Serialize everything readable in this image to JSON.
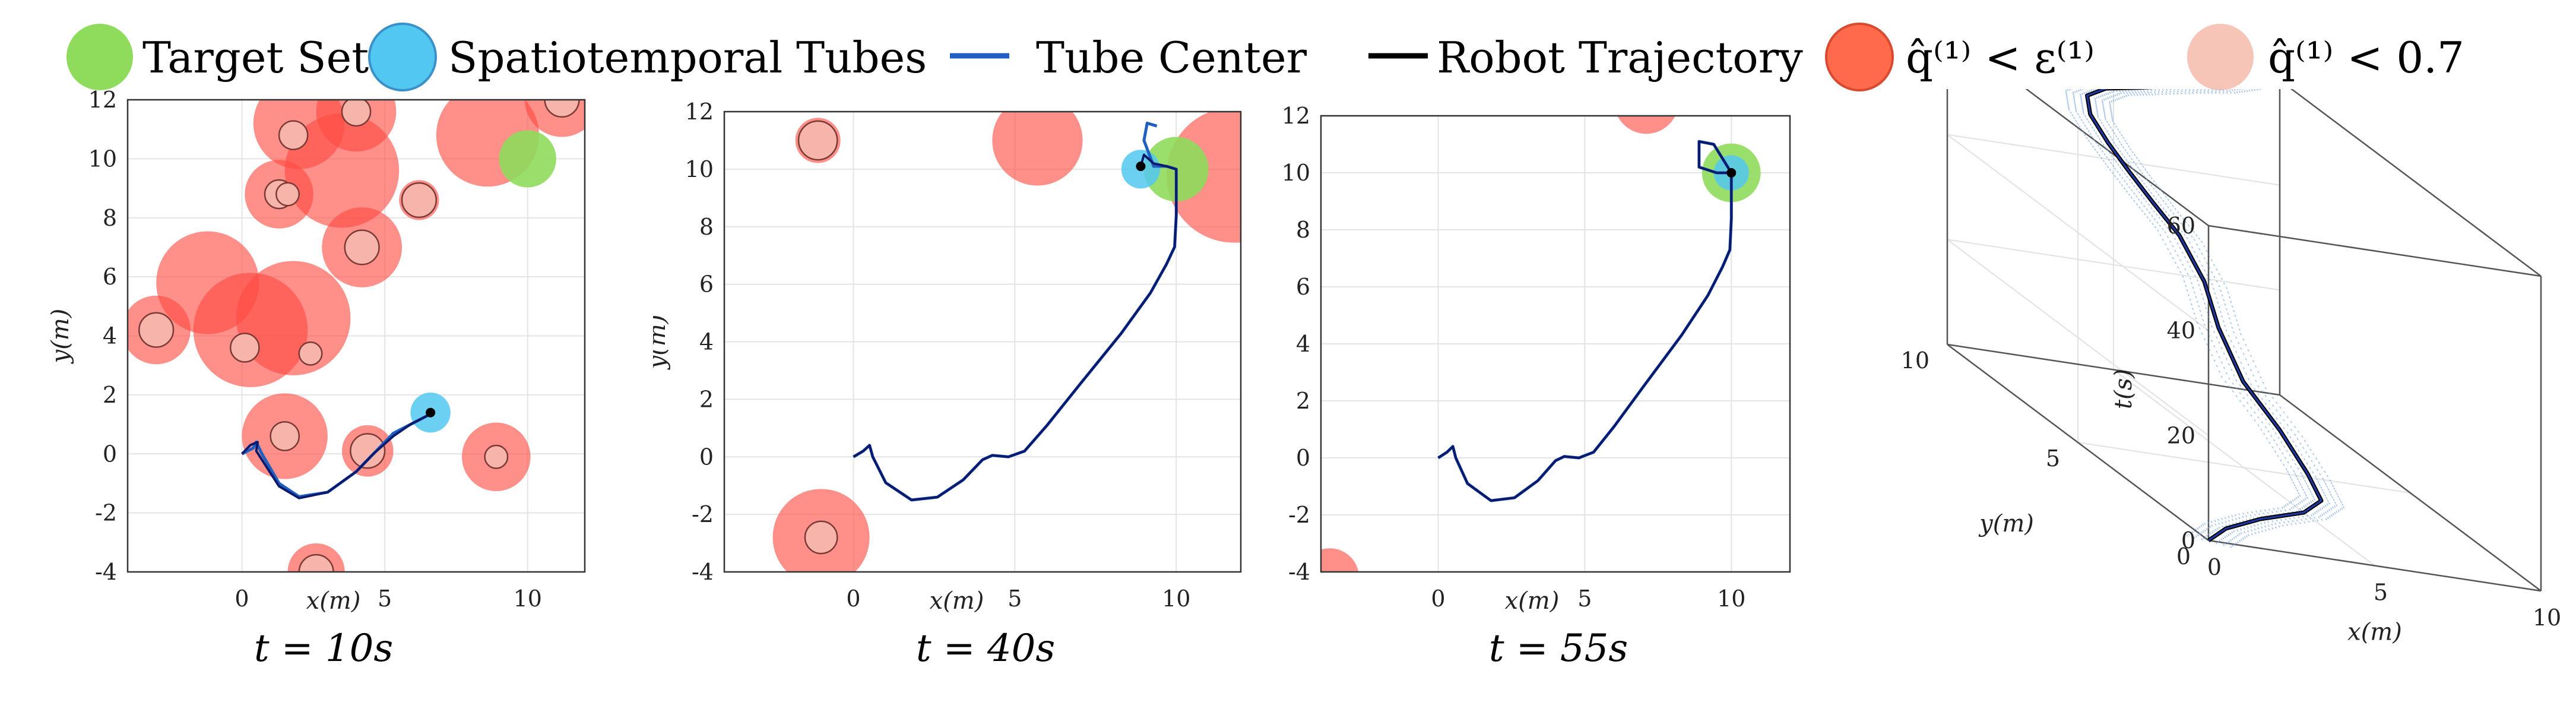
{
  "legend": {
    "target_set": "Target Set",
    "tubes": "Spatiotemporal Tubes",
    "tube_center": "Tube Center",
    "robot_trajectory": "Robot Trajectory",
    "q_eps": "q̂⁽¹⁾ < ε⁽¹⁾",
    "q_07": "q̂⁽¹⁾ < 0.7"
  },
  "colors": {
    "target": "#8fdc5c",
    "tube": "#52c8f0",
    "tube_center": "#1f5fbf",
    "trajectory": "#0a1a6e",
    "obstacle_eps": "#ff4a40",
    "obstacle_07": "#f7b4aa"
  },
  "chart_data": [
    {
      "type": "scatter",
      "title": "t = 10s",
      "xlabel": "x(m)",
      "ylabel": "y(m)",
      "xlim": [
        -4,
        12
      ],
      "ylim": [
        -4,
        12
      ],
      "xticks": [
        0,
        5,
        10
      ],
      "yticks": [
        -4,
        -2,
        0,
        2,
        4,
        6,
        8,
        10,
        12
      ],
      "grid": true,
      "target": {
        "x": 10,
        "y": 10,
        "r": 1.0
      },
      "tube": {
        "x": 6.6,
        "y": 1.4,
        "r": 0.7
      },
      "robot": {
        "x": 6.6,
        "y": 1.4
      },
      "obstacles": [
        {
          "x": 2.0,
          "y": 11.2,
          "r": 1.6,
          "inner": 0.0
        },
        {
          "x": 1.8,
          "y": 10.8,
          "r": 0.5,
          "inner": 0.5
        },
        {
          "x": 4.0,
          "y": 11.6,
          "r": 1.4,
          "inner": 0.5
        },
        {
          "x": 3.5,
          "y": 9.6,
          "r": 2.0,
          "inner": 0.0
        },
        {
          "x": 1.3,
          "y": 8.8,
          "r": 1.2,
          "inner": 0.5
        },
        {
          "x": 1.6,
          "y": 8.8,
          "r": 0.4,
          "inner": 0.4
        },
        {
          "x": 4.2,
          "y": 7.0,
          "r": 1.4,
          "inner": 0.6
        },
        {
          "x": 6.2,
          "y": 8.6,
          "r": 0.7,
          "inner": 0.6
        },
        {
          "x": 8.6,
          "y": 10.8,
          "r": 1.8,
          "inner": 0.0
        },
        {
          "x": 11.2,
          "y": 12.0,
          "r": 1.3,
          "inner": 0.6
        },
        {
          "x": -1.2,
          "y": 5.8,
          "r": 1.8,
          "inner": 0.0
        },
        {
          "x": 0.3,
          "y": 4.2,
          "r": 2.0,
          "inner": 0.0
        },
        {
          "x": 1.8,
          "y": 4.6,
          "r": 2.0,
          "inner": 0.0
        },
        {
          "x": 0.1,
          "y": 3.6,
          "r": 0.5,
          "inner": 0.5
        },
        {
          "x": 2.4,
          "y": 3.4,
          "r": 0.4,
          "inner": 0.4
        },
        {
          "x": -3.0,
          "y": 4.2,
          "r": 1.2,
          "inner": 0.6
        },
        {
          "x": 1.5,
          "y": 0.6,
          "r": 1.5,
          "inner": 0.5
        },
        {
          "x": 4.4,
          "y": 0.1,
          "r": 0.9,
          "inner": 0.6
        },
        {
          "x": 8.9,
          "y": -0.1,
          "r": 1.2,
          "inner": 0.4
        },
        {
          "x": 2.6,
          "y": -4.0,
          "r": 1.0,
          "inner": 0.6
        }
      ],
      "center_path": {
        "x": [
          0,
          0.4,
          0.5,
          0.7,
          1.3,
          2.0,
          3.0,
          4.0,
          4.6,
          5.3,
          5.9,
          6.5,
          6.7
        ],
        "y": [
          0.0,
          0.2,
          0.4,
          0.0,
          -1.0,
          -1.45,
          -1.3,
          -0.6,
          0.0,
          0.7,
          1.0,
          1.3,
          1.4
        ]
      },
      "trajectory": {
        "x": [
          0.0,
          0.3,
          0.55,
          0.5,
          0.7,
          1.3,
          2.0,
          3.0,
          4.0,
          4.6,
          5.3,
          5.9,
          6.5,
          6.6
        ],
        "y": [
          0.0,
          0.3,
          0.4,
          0.1,
          -0.2,
          -1.1,
          -1.5,
          -1.3,
          -0.6,
          0.0,
          0.6,
          1.0,
          1.3,
          1.4
        ]
      }
    },
    {
      "type": "scatter",
      "title": "t = 40s",
      "xlabel": "x(m)",
      "ylabel": "y(m)",
      "xlim": [
        -4,
        12
      ],
      "ylim": [
        -4,
        12
      ],
      "xticks": [
        0,
        5,
        10
      ],
      "yticks": [
        -4,
        -2,
        0,
        2,
        4,
        6,
        8,
        10,
        12
      ],
      "grid": true,
      "target": {
        "x": 10,
        "y": 10,
        "r": 1.0
      },
      "tube": {
        "x": 8.9,
        "y": 10.0,
        "r": 0.6
      },
      "robot": {
        "x": 8.9,
        "y": 10.1
      },
      "obstacles": [
        {
          "x": -1.1,
          "y": 11.0,
          "r": 0.7,
          "inner": 0.6
        },
        {
          "x": 5.7,
          "y": 11.0,
          "r": 1.4,
          "inner": 0.0
        },
        {
          "x": 11.8,
          "y": 9.8,
          "r": 2.1,
          "inner": 0.0
        },
        {
          "x": -1.0,
          "y": -2.8,
          "r": 1.5,
          "inner": 0.5
        }
      ],
      "center_path": {
        "x": [
          0,
          0.3,
          0.5,
          0.6,
          1.0,
          1.8,
          2.6,
          3.4,
          4.0,
          4.3,
          4.8,
          5.3,
          6.0,
          7.0,
          8.3,
          9.2,
          9.7,
          9.95,
          10.0,
          10.0,
          9.7,
          9.3,
          9.0,
          9.1,
          9.4
        ],
        "y": [
          0.0,
          0.2,
          0.4,
          0.0,
          -0.9,
          -1.5,
          -1.4,
          -0.8,
          -0.1,
          0.05,
          0.0,
          0.2,
          1.1,
          2.5,
          4.3,
          5.7,
          6.7,
          7.3,
          8.4,
          10.0,
          10.1,
          10.1,
          11.0,
          11.6,
          11.5
        ],
        "name": ""
      },
      "trajectory": {
        "x": [
          0,
          0.3,
          0.5,
          0.6,
          1.0,
          1.8,
          2.6,
          3.4,
          4.0,
          4.3,
          4.8,
          5.3,
          6.0,
          7.0,
          8.3,
          9.2,
          9.7,
          9.95,
          10.0,
          10.0,
          9.7,
          9.3,
          9.0,
          8.9
        ],
        "y": [
          0.0,
          0.2,
          0.4,
          0.0,
          -0.9,
          -1.5,
          -1.4,
          -0.8,
          -0.1,
          0.05,
          0.0,
          0.2,
          1.1,
          2.5,
          4.3,
          5.7,
          6.7,
          7.3,
          8.4,
          10.0,
          10.1,
          10.2,
          10.5,
          10.1
        ]
      }
    },
    {
      "type": "scatter",
      "title": "t = 55s",
      "xlabel": "x(m)",
      "ylabel": "y(m)",
      "xlim": [
        -4,
        12
      ],
      "ylim": [
        -4,
        12
      ],
      "xticks": [
        0,
        5,
        10
      ],
      "yticks": [
        -4,
        -2,
        0,
        2,
        4,
        6,
        8,
        10,
        12
      ],
      "grid": true,
      "target": {
        "x": 10,
        "y": 10,
        "r": 1.0
      },
      "tube": {
        "x": 10,
        "y": 10,
        "r": 0.6
      },
      "robot": {
        "x": 10.0,
        "y": 10.0
      },
      "obstacles": [
        {
          "x": 7.1,
          "y": 12.5,
          "r": 1.1,
          "inner": 0.0
        },
        {
          "x": -3.7,
          "y": -4.2,
          "r": 1.0,
          "inner": 0.0
        }
      ],
      "center_path": {
        "x": [
          0,
          0.3,
          0.5,
          0.6,
          1.0,
          1.8,
          2.6,
          3.4,
          4.0,
          4.3,
          4.8,
          5.3,
          6.0,
          7.0,
          8.3,
          9.2,
          9.7,
          9.95,
          10.0,
          10.0,
          9.5,
          8.9,
          8.9,
          9.4,
          10.0
        ],
        "y": [
          0.0,
          0.2,
          0.4,
          0.0,
          -0.9,
          -1.5,
          -1.4,
          -0.8,
          -0.1,
          0.05,
          0.0,
          0.2,
          1.1,
          2.5,
          4.3,
          5.7,
          6.7,
          7.3,
          8.4,
          10.0,
          10.0,
          10.2,
          11.1,
          11.0,
          10.0
        ]
      },
      "trajectory": {
        "x": [
          0,
          0.3,
          0.5,
          0.6,
          1.0,
          1.8,
          2.6,
          3.4,
          4.0,
          4.3,
          4.8,
          5.3,
          6.0,
          7.0,
          8.3,
          9.2,
          9.7,
          9.95,
          10.0,
          10.0,
          9.5,
          8.9,
          8.9,
          9.4,
          10.0
        ],
        "y": [
          0.0,
          0.2,
          0.4,
          0.0,
          -0.9,
          -1.5,
          -1.4,
          -0.8,
          -0.1,
          0.05,
          0.0,
          0.2,
          1.1,
          2.5,
          4.3,
          5.7,
          6.7,
          7.3,
          8.4,
          10.0,
          10.0,
          10.2,
          11.1,
          11.0,
          10.0
        ]
      }
    },
    {
      "type": "line",
      "title": "",
      "xlabel": "x(m)",
      "ylabel": "y(m)",
      "zlabel": "t(s)",
      "xlim": [
        0,
        10
      ],
      "ylim": [
        0,
        10
      ],
      "zlim": [
        0,
        60
      ],
      "xticks": [
        0,
        5,
        10
      ],
      "yticks": [
        0,
        5,
        10
      ],
      "zticks": [
        0,
        20,
        40,
        60
      ],
      "grid": true,
      "trajectory": {
        "x": [
          0.0,
          1.0,
          2.5,
          4.2,
          5.2,
          5.5,
          5.6,
          5.6,
          5.8,
          6.0,
          5.8,
          5.4,
          5.0,
          4.6,
          4.3,
          4.6,
          5.4,
          6.3,
          7.3,
          8.2,
          8.8,
          9.0,
          9.1
        ],
        "y": [
          0.0,
          0.6,
          1.2,
          1.7,
          2.3,
          3.2,
          4.4,
          5.8,
          7.0,
          7.8,
          8.5,
          9.0,
          9.4,
          9.7,
          10.0,
          10.5,
          10.8,
          10.8,
          10.6,
          10.3,
          10.1,
          10.0,
          10.0
        ],
        "t": [
          0,
          1,
          2,
          3,
          4,
          6,
          10,
          14,
          20,
          26,
          32,
          36,
          40,
          44,
          48,
          50,
          51,
          52,
          54,
          56,
          58,
          60,
          66
        ]
      }
    }
  ]
}
